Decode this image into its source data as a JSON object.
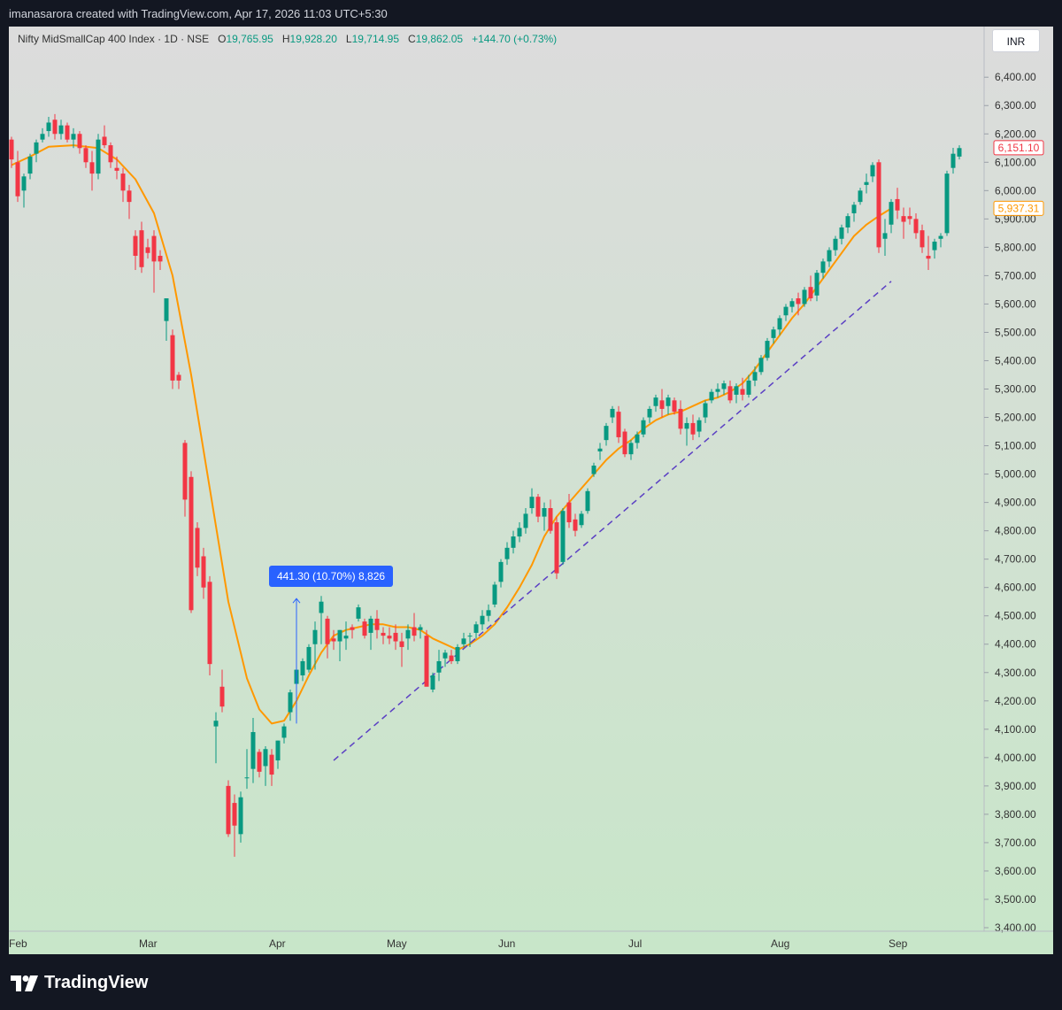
{
  "header": {
    "credit": "imanasarora created with TradingView.com, Apr 17, 2026 11:03 UTC+5:30"
  },
  "legend": {
    "symbol": "Nifty MidSmallCap 400 Index · 1D · NSE",
    "o_key": "O",
    "o_val": "19,765.95",
    "h_key": "H",
    "h_val": "19,928.20",
    "l_key": "L",
    "l_val": "19,714.95",
    "c_key": "C",
    "c_val": "19,862.05",
    "change": "+144.70 (+0.73%)"
  },
  "currency_button": "INR",
  "footer": {
    "brand": "TradingView"
  },
  "colors": {
    "up": "#089981",
    "down": "#f23645",
    "ma": "#ff9800",
    "trendline": "#5b3fc4",
    "bg_top": "#dcdcdc",
    "bg_bottom": "#c8e6c9",
    "axis_text": "#333333",
    "frame": "#131722"
  },
  "chart_data": {
    "type": "candlestick",
    "price_axis": {
      "ylim": [
        3400,
        6460
      ],
      "ticks": [
        "6,400.00",
        "6,300.00",
        "6,200.00",
        "6,100.00",
        "6,000.00",
        "5,900.00",
        "5,800.00",
        "5,700.00",
        "5,600.00",
        "5,500.00",
        "5,400.00",
        "5,300.00",
        "5,200.00",
        "5,100.00",
        "5,000.00",
        "4,900.00",
        "4,800.00",
        "4,700.00",
        "4,600.00",
        "4,500.00",
        "4,400.00",
        "4,300.00",
        "4,200.00",
        "4,100.00",
        "4,000.00",
        "3,900.00",
        "3,800.00",
        "3,700.00",
        "3,600.00",
        "3,500.00",
        "3,400.00"
      ],
      "last_price_label": "6,151.10",
      "ma_price_label": "5,937.31"
    },
    "time_axis": {
      "labels": [
        "Feb",
        "Mar",
        "Apr",
        "May",
        "Jun",
        "Jul",
        "Aug",
        "Sep"
      ],
      "label_bar_index": [
        0,
        21,
        42,
        61,
        79,
        100,
        123,
        142
      ]
    },
    "candles": [
      [
        6180,
        6190,
        6080,
        6110
      ],
      [
        6100,
        6140,
        5960,
        5980
      ],
      [
        6000,
        6060,
        5940,
        6050
      ],
      [
        6060,
        6130,
        6040,
        6120
      ],
      [
        6130,
        6180,
        6100,
        6170
      ],
      [
        6180,
        6220,
        6170,
        6200
      ],
      [
        6210,
        6260,
        6190,
        6240
      ],
      [
        6250,
        6270,
        6180,
        6200
      ],
      [
        6200,
        6250,
        6180,
        6230
      ],
      [
        6230,
        6240,
        6170,
        6180
      ],
      [
        6180,
        6220,
        6150,
        6200
      ],
      [
        6200,
        6210,
        6130,
        6150
      ],
      [
        6150,
        6160,
        6080,
        6100
      ],
      [
        6100,
        6140,
        6000,
        6060
      ],
      [
        6060,
        6200,
        6040,
        6180
      ],
      [
        6190,
        6230,
        6150,
        6160
      ],
      [
        6160,
        6170,
        6080,
        6100
      ],
      [
        6080,
        6120,
        6040,
        6070
      ],
      [
        6060,
        6080,
        5960,
        6000
      ],
      [
        6000,
        6020,
        5900,
        5960
      ],
      [
        5840,
        5860,
        5720,
        5770
      ],
      [
        5860,
        5890,
        5710,
        5730
      ],
      [
        5800,
        5830,
        5760,
        5780
      ],
      [
        5840,
        5860,
        5640,
        5750
      ],
      [
        5770,
        5790,
        5720,
        5750
      ],
      [
        5540,
        5620,
        5470,
        5620
      ],
      [
        5490,
        5510,
        5300,
        5330
      ],
      [
        5350,
        5360,
        5300,
        5330
      ],
      [
        5110,
        5120,
        4850,
        4910
      ],
      [
        4990,
        5010,
        4510,
        4520
      ],
      [
        4810,
        4830,
        4640,
        4670
      ],
      [
        4710,
        4740,
        4560,
        4600
      ],
      [
        4620,
        4640,
        4290,
        4330
      ],
      [
        4110,
        4160,
        3980,
        4130
      ],
      [
        4250,
        4310,
        4160,
        4180
      ],
      [
        3900,
        3920,
        3720,
        3730
      ],
      [
        3840,
        3870,
        3650,
        3760
      ],
      [
        3730,
        3880,
        3700,
        3860
      ],
      [
        3930,
        4030,
        3890,
        3930
      ],
      [
        3960,
        4140,
        3910,
        4090
      ],
      [
        4020,
        4030,
        3930,
        3950
      ],
      [
        3970,
        4040,
        3900,
        4030
      ],
      [
        4010,
        4030,
        3900,
        3940
      ],
      [
        3990,
        4060,
        3960,
        4060
      ],
      [
        4070,
        4120,
        4050,
        4110
      ],
      [
        4160,
        4240,
        4130,
        4230
      ],
      [
        4260,
        4320,
        4240,
        4310
      ],
      [
        4290,
        4350,
        4270,
        4340
      ],
      [
        4310,
        4400,
        4300,
        4390
      ],
      [
        4400,
        4480,
        4310,
        4450
      ],
      [
        4510,
        4570,
        4400,
        4550
      ],
      [
        4490,
        4500,
        4350,
        4400
      ],
      [
        4420,
        4450,
        4380,
        4410
      ],
      [
        4410,
        4450,
        4340,
        4450
      ],
      [
        4420,
        4480,
        4380,
        4430
      ],
      [
        4460,
        4470,
        4420,
        4450
      ],
      [
        4490,
        4540,
        4480,
        4530
      ],
      [
        4480,
        4490,
        4420,
        4430
      ],
      [
        4440,
        4500,
        4380,
        4490
      ],
      [
        4490,
        4520,
        4420,
        4450
      ],
      [
        4440,
        4460,
        4400,
        4430
      ],
      [
        4430,
        4460,
        4400,
        4420
      ],
      [
        4440,
        4470,
        4380,
        4410
      ],
      [
        4410,
        4440,
        4320,
        4390
      ],
      [
        4420,
        4470,
        4380,
        4450
      ],
      [
        4460,
        4510,
        4410,
        4430
      ],
      [
        4450,
        4470,
        4420,
        4460
      ],
      [
        4430,
        4450,
        4270,
        4250
      ],
      [
        4240,
        4300,
        4230,
        4290
      ],
      [
        4300,
        4380,
        4270,
        4340
      ],
      [
        4350,
        4380,
        4320,
        4370
      ],
      [
        4360,
        4380,
        4330,
        4340
      ],
      [
        4340,
        4400,
        4330,
        4390
      ],
      [
        4400,
        4440,
        4390,
        4420
      ],
      [
        4430,
        4440,
        4390,
        4430
      ],
      [
        4440,
        4480,
        4420,
        4470
      ],
      [
        4470,
        4520,
        4450,
        4500
      ],
      [
        4500,
        4540,
        4480,
        4520
      ],
      [
        4540,
        4620,
        4530,
        4610
      ],
      [
        4620,
        4700,
        4600,
        4690
      ],
      [
        4700,
        4760,
        4680,
        4740
      ],
      [
        4740,
        4800,
        4720,
        4780
      ],
      [
        4780,
        4830,
        4760,
        4810
      ],
      [
        4810,
        4880,
        4790,
        4860
      ],
      [
        4880,
        4950,
        4860,
        4920
      ],
      [
        4920,
        4930,
        4830,
        4850
      ],
      [
        4850,
        4900,
        4800,
        4880
      ],
      [
        4880,
        4910,
        4790,
        4800
      ],
      [
        4830,
        4850,
        4630,
        4650
      ],
      [
        4690,
        4880,
        4680,
        4870
      ],
      [
        4900,
        4930,
        4810,
        4830
      ],
      [
        4840,
        4860,
        4780,
        4800
      ],
      [
        4820,
        4870,
        4810,
        4860
      ],
      [
        4870,
        4950,
        4860,
        4940
      ],
      [
        5000,
        5040,
        4990,
        5030
      ],
      [
        5080,
        5110,
        5050,
        5090
      ],
      [
        5120,
        5180,
        5100,
        5170
      ],
      [
        5200,
        5240,
        5180,
        5230
      ],
      [
        5220,
        5240,
        5110,
        5130
      ],
      [
        5150,
        5160,
        5060,
        5070
      ],
      [
        5070,
        5120,
        5050,
        5110
      ],
      [
        5110,
        5150,
        5090,
        5140
      ],
      [
        5140,
        5200,
        5130,
        5190
      ],
      [
        5200,
        5240,
        5180,
        5230
      ],
      [
        5240,
        5280,
        5220,
        5270
      ],
      [
        5260,
        5300,
        5200,
        5230
      ],
      [
        5240,
        5280,
        5210,
        5270
      ],
      [
        5260,
        5270,
        5210,
        5220
      ],
      [
        5230,
        5260,
        5140,
        5160
      ],
      [
        5160,
        5200,
        5100,
        5180
      ],
      [
        5180,
        5210,
        5120,
        5140
      ],
      [
        5150,
        5200,
        5130,
        5190
      ],
      [
        5200,
        5260,
        5180,
        5250
      ],
      [
        5260,
        5300,
        5250,
        5290
      ],
      [
        5290,
        5320,
        5270,
        5300
      ],
      [
        5300,
        5330,
        5280,
        5320
      ],
      [
        5310,
        5330,
        5250,
        5260
      ],
      [
        5280,
        5320,
        5250,
        5310
      ],
      [
        5300,
        5340,
        5260,
        5280
      ],
      [
        5280,
        5350,
        5270,
        5330
      ],
      [
        5330,
        5380,
        5310,
        5360
      ],
      [
        5360,
        5420,
        5350,
        5410
      ],
      [
        5410,
        5480,
        5400,
        5470
      ],
      [
        5480,
        5520,
        5460,
        5510
      ],
      [
        5510,
        5560,
        5490,
        5550
      ],
      [
        5560,
        5600,
        5540,
        5590
      ],
      [
        5590,
        5620,
        5570,
        5610
      ],
      [
        5620,
        5640,
        5560,
        5600
      ],
      [
        5600,
        5660,
        5590,
        5650
      ],
      [
        5660,
        5700,
        5610,
        5620
      ],
      [
        5630,
        5720,
        5610,
        5710
      ],
      [
        5710,
        5760,
        5690,
        5750
      ],
      [
        5750,
        5800,
        5730,
        5790
      ],
      [
        5790,
        5840,
        5770,
        5830
      ],
      [
        5830,
        5880,
        5810,
        5870
      ],
      [
        5870,
        5920,
        5850,
        5910
      ],
      [
        5920,
        5960,
        5890,
        5950
      ],
      [
        5960,
        6010,
        5950,
        6000
      ],
      [
        6020,
        6060,
        5990,
        6030
      ],
      [
        6050,
        6100,
        6030,
        6090
      ],
      [
        6100,
        6110,
        5780,
        5800
      ],
      [
        5830,
        5900,
        5770,
        5850
      ],
      [
        5880,
        5970,
        5850,
        5960
      ],
      [
        5970,
        6010,
        5900,
        5930
      ],
      [
        5910,
        5940,
        5830,
        5890
      ],
      [
        5910,
        5940,
        5880,
        5900
      ],
      [
        5900,
        5920,
        5830,
        5850
      ],
      [
        5860,
        5880,
        5780,
        5800
      ],
      [
        5770,
        5840,
        5720,
        5760
      ],
      [
        5790,
        5830,
        5760,
        5820
      ],
      [
        5830,
        5850,
        5800,
        5840
      ],
      [
        5850,
        6070,
        5840,
        6060
      ],
      [
        6080,
        6151,
        6060,
        6130
      ],
      [
        6120,
        6160,
        6110,
        6150
      ]
    ],
    "moving_average": {
      "label": "5,937.31",
      "points": [
        [
          0,
          6090
        ],
        [
          3,
          6120
        ],
        [
          6,
          6155
        ],
        [
          10,
          6160
        ],
        [
          14,
          6150
        ],
        [
          17,
          6110
        ],
        [
          20,
          6040
        ],
        [
          23,
          5920
        ],
        [
          26,
          5700
        ],
        [
          29,
          5350
        ],
        [
          32,
          4950
        ],
        [
          35,
          4550
        ],
        [
          38,
          4280
        ],
        [
          40,
          4170
        ],
        [
          42,
          4120
        ],
        [
          44,
          4130
        ],
        [
          46,
          4200
        ],
        [
          48,
          4290
        ],
        [
          50,
          4370
        ],
        [
          52,
          4430
        ],
        [
          54,
          4450
        ],
        [
          56,
          4460
        ],
        [
          58,
          4470
        ],
        [
          60,
          4470
        ],
        [
          62,
          4460
        ],
        [
          64,
          4460
        ],
        [
          66,
          4450
        ],
        [
          68,
          4420
        ],
        [
          70,
          4400
        ],
        [
          72,
          4380
        ],
        [
          74,
          4400
        ],
        [
          76,
          4430
        ],
        [
          78,
          4470
        ],
        [
          80,
          4530
        ],
        [
          82,
          4600
        ],
        [
          84,
          4680
        ],
        [
          86,
          4780
        ],
        [
          88,
          4850
        ],
        [
          90,
          4900
        ],
        [
          92,
          4950
        ],
        [
          94,
          5000
        ],
        [
          96,
          5050
        ],
        [
          98,
          5090
        ],
        [
          100,
          5120
        ],
        [
          102,
          5160
        ],
        [
          104,
          5190
        ],
        [
          106,
          5210
        ],
        [
          108,
          5220
        ],
        [
          110,
          5240
        ],
        [
          112,
          5260
        ],
        [
          114,
          5270
        ],
        [
          116,
          5290
        ],
        [
          118,
          5320
        ],
        [
          120,
          5370
        ],
        [
          122,
          5430
        ],
        [
          124,
          5490
        ],
        [
          126,
          5550
        ],
        [
          128,
          5600
        ],
        [
          130,
          5660
        ],
        [
          132,
          5720
        ],
        [
          134,
          5780
        ],
        [
          136,
          5840
        ],
        [
          138,
          5880
        ],
        [
          140,
          5910
        ],
        [
          142,
          5937
        ]
      ]
    },
    "trendline": {
      "from": [
        52,
        3990
      ],
      "to": [
        142,
        5680
      ]
    },
    "measure_annotation": {
      "text": "441.30 (10.70%) 8,826",
      "bar": 46,
      "from_price": 4120,
      "to_price": 4561
    }
  }
}
